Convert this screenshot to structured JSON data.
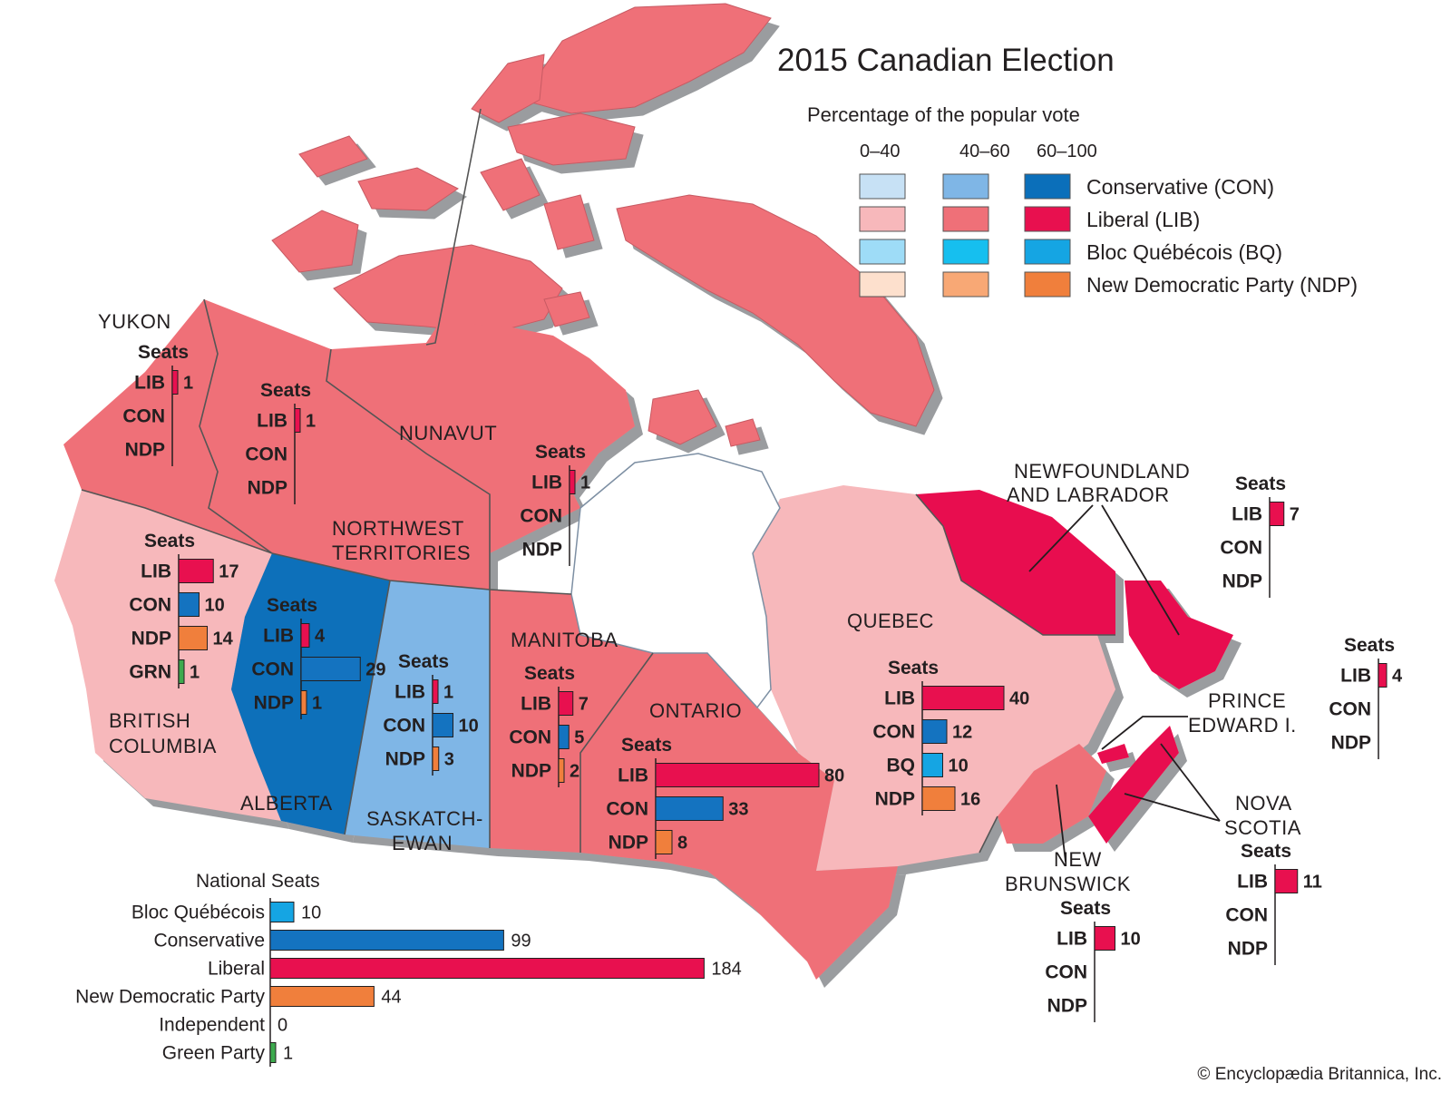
{
  "title": "2015 Canadian Election",
  "legend": {
    "subtitle": "Percentage of the popular vote",
    "ranges": [
      "0–40",
      "40–60",
      "60–100"
    ],
    "parties": [
      {
        "label": "Conservative (CON)",
        "colors": [
          "#c7e1f5",
          "#7fb6e6",
          "#0b6fba"
        ]
      },
      {
        "label": "Liberal (LIB)",
        "colors": [
          "#f7b8bb",
          "#ef7078",
          "#e8104f"
        ]
      },
      {
        "label": "Bloc Québécois (BQ)",
        "colors": [
          "#9edcf7",
          "#16bfef",
          "#15a5e3"
        ]
      },
      {
        "label": "New Democratic Party (NDP)",
        "colors": [
          "#fde0cd",
          "#f8a875",
          "#f07f3c"
        ]
      }
    ]
  },
  "party_colors": {
    "LIB": "#e8104f",
    "CON": "#1473c0",
    "NDP": "#f07f3c",
    "BQ": "#15a5e3",
    "GRN": "#3daa4e",
    "IND": "#999999"
  },
  "regions": [
    {
      "id": "yukon",
      "label": [
        "YUKON"
      ],
      "fill": "#ef7078",
      "seats": [
        {
          "party": "LIB",
          "value": "1"
        },
        {
          "party": "CON",
          "value": ""
        },
        {
          "party": "NDP",
          "value": ""
        }
      ]
    },
    {
      "id": "northwest-territories",
      "label": [
        "NORTHWEST",
        "TERRITORIES"
      ],
      "fill": "#ef7078",
      "seats": [
        {
          "party": "LIB",
          "value": "1"
        },
        {
          "party": "CON",
          "value": ""
        },
        {
          "party": "NDP",
          "value": ""
        }
      ]
    },
    {
      "id": "nunavut",
      "label": [
        "NUNAVUT"
      ],
      "fill": "#ef7078",
      "seats": [
        {
          "party": "LIB",
          "value": "1"
        },
        {
          "party": "CON",
          "value": ""
        },
        {
          "party": "NDP",
          "value": ""
        }
      ]
    },
    {
      "id": "british-columbia",
      "label": [
        "BRITISH",
        "COLUMBIA"
      ],
      "fill": "#f7b8bb",
      "seats": [
        {
          "party": "LIB",
          "value": "17"
        },
        {
          "party": "CON",
          "value": "10"
        },
        {
          "party": "NDP",
          "value": "14"
        },
        {
          "party": "GRN",
          "value": "1"
        }
      ]
    },
    {
      "id": "alberta",
      "label": [
        "ALBERTA"
      ],
      "fill": "#0b6fba",
      "seats": [
        {
          "party": "LIB",
          "value": "4"
        },
        {
          "party": "CON",
          "value": "29"
        },
        {
          "party": "NDP",
          "value": "1"
        }
      ]
    },
    {
      "id": "saskatchewan",
      "label": [
        "SASKATCH-",
        "EWAN"
      ],
      "fill": "#7fb6e6",
      "seats": [
        {
          "party": "LIB",
          "value": "1"
        },
        {
          "party": "CON",
          "value": "10"
        },
        {
          "party": "NDP",
          "value": "3"
        }
      ]
    },
    {
      "id": "manitoba",
      "label": [
        "MANITOBA"
      ],
      "fill": "#ef7078",
      "seats": [
        {
          "party": "LIB",
          "value": "7"
        },
        {
          "party": "CON",
          "value": "5"
        },
        {
          "party": "NDP",
          "value": "2"
        }
      ]
    },
    {
      "id": "ontario",
      "label": [
        "ONTARIO"
      ],
      "fill": "#ef7078",
      "seats": [
        {
          "party": "LIB",
          "value": "80"
        },
        {
          "party": "CON",
          "value": "33"
        },
        {
          "party": "NDP",
          "value": "8"
        }
      ]
    },
    {
      "id": "quebec",
      "label": [
        "QUEBEC"
      ],
      "fill": "#f7b8bb",
      "seats": [
        {
          "party": "LIB",
          "value": "40"
        },
        {
          "party": "CON",
          "value": "12"
        },
        {
          "party": "BQ",
          "value": "10"
        },
        {
          "party": "NDP",
          "value": "16"
        }
      ]
    },
    {
      "id": "newfoundland-and-labrador",
      "label": [
        "NEWFOUNDLAND",
        "AND LABRADOR"
      ],
      "fill": "#e8104f",
      "seats": [
        {
          "party": "LIB",
          "value": "7"
        },
        {
          "party": "CON",
          "value": ""
        },
        {
          "party": "NDP",
          "value": ""
        }
      ]
    },
    {
      "id": "prince-edward-island",
      "label": [
        "PRINCE",
        "EDWARD I."
      ],
      "fill": "#e8104f",
      "seats": [
        {
          "party": "LIB",
          "value": "4"
        },
        {
          "party": "CON",
          "value": ""
        },
        {
          "party": "NDP",
          "value": ""
        }
      ]
    },
    {
      "id": "nova-scotia",
      "label": [
        "NOVA",
        "SCOTIA"
      ],
      "fill": "#e8104f",
      "seats": [
        {
          "party": "LIB",
          "value": "11"
        },
        {
          "party": "CON",
          "value": ""
        },
        {
          "party": "NDP",
          "value": ""
        }
      ]
    },
    {
      "id": "new-brunswick",
      "label": [
        "NEW",
        "BRUNSWICK"
      ],
      "fill": "#ef7078",
      "seats": [
        {
          "party": "LIB",
          "value": "10"
        },
        {
          "party": "CON",
          "value": ""
        },
        {
          "party": "NDP",
          "value": ""
        }
      ]
    }
  ],
  "seats_header": "Seats",
  "national": {
    "title": "National Seats",
    "rows": [
      {
        "label": "Bloc Québécois",
        "party": "BQ",
        "value": "10"
      },
      {
        "label": "Conservative",
        "party": "CON",
        "value": "99"
      },
      {
        "label": "Liberal",
        "party": "LIB",
        "value": "184"
      },
      {
        "label": "New Democratic Party",
        "party": "NDP",
        "value": "44"
      },
      {
        "label": "Independent",
        "party": "IND",
        "value": "0"
      },
      {
        "label": "Green Party",
        "party": "GRN",
        "value": "1"
      }
    ]
  },
  "credit": "© Encyclopædia Britannica, Inc."
}
